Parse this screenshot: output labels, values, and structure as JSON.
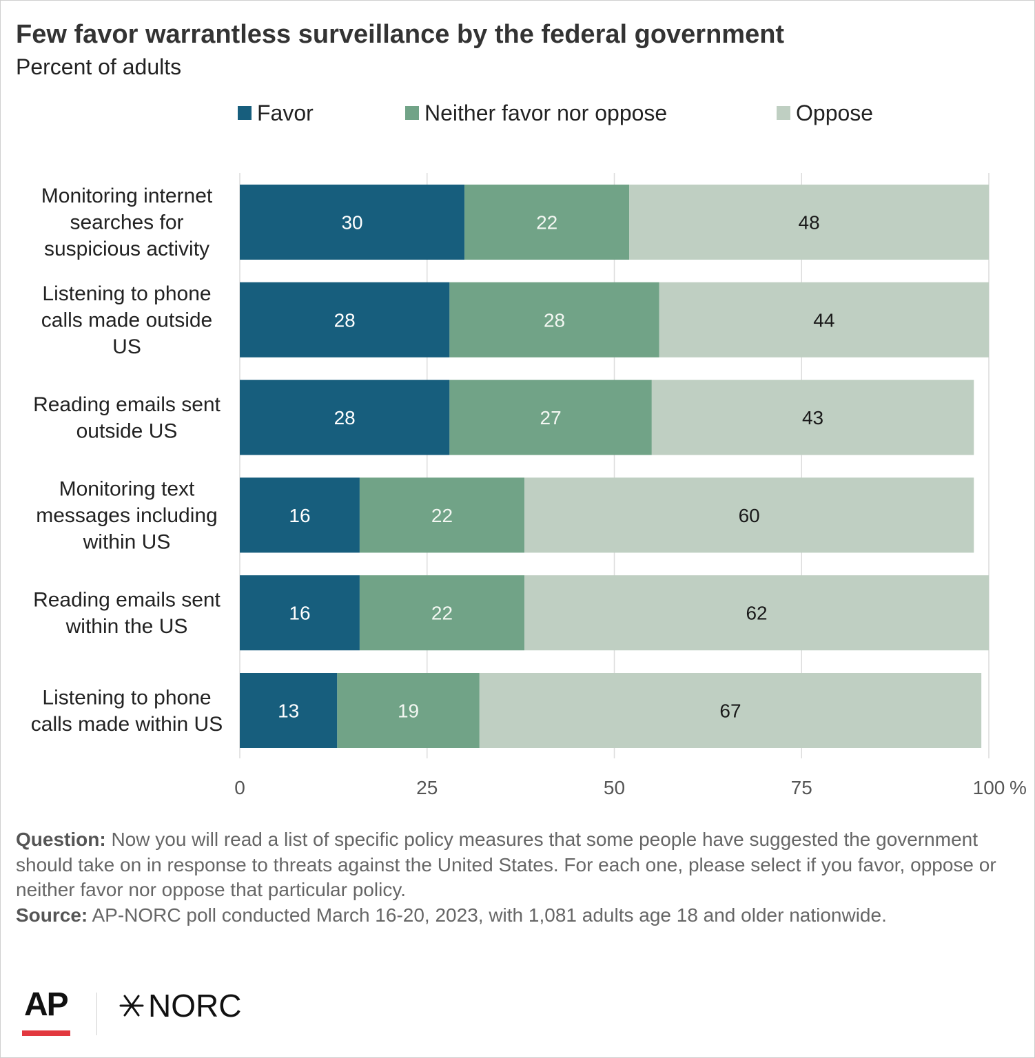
{
  "title": "Few favor warrantless surveillance by the federal government",
  "subtitle": "Percent of adults",
  "legend": [
    {
      "label": "Favor",
      "color": "#175e7d"
    },
    {
      "label": "Neither favor nor oppose",
      "color": "#71a387"
    },
    {
      "label": "Oppose",
      "color": "#bfcfc2"
    }
  ],
  "chart_data": {
    "type": "bar",
    "orientation": "horizontal",
    "stacked": true,
    "categories": [
      [
        "Monitoring internet",
        "searches for",
        "suspicious activity"
      ],
      [
        "Listening to phone",
        "calls made outside",
        "US"
      ],
      [
        "Reading emails sent",
        "outside US"
      ],
      [
        "Monitoring text",
        "messages including",
        "within US"
      ],
      [
        "Reading emails sent",
        "within the US"
      ],
      [
        "Listening to phone",
        "calls made within US"
      ]
    ],
    "series": [
      {
        "name": "Favor",
        "values": [
          30,
          28,
          28,
          16,
          16,
          13
        ],
        "color": "#175e7d",
        "label_color": "#ffffff"
      },
      {
        "name": "Neither favor nor oppose",
        "values": [
          22,
          28,
          27,
          22,
          22,
          19
        ],
        "color": "#71a387",
        "label_color": "#f3f7f2"
      },
      {
        "name": "Oppose",
        "values": [
          48,
          44,
          43,
          60,
          62,
          67
        ],
        "color": "#bfcfc2",
        "label_color": "#1a1a1a"
      }
    ],
    "xlim": [
      0,
      100
    ],
    "xticks": [
      0,
      25,
      50,
      75,
      100
    ],
    "xtick_labels": [
      "0",
      "25",
      "50",
      "75",
      "100"
    ],
    "x_unit": "%",
    "grid": true,
    "legend_position": "top"
  },
  "footnote": {
    "question_label": "Question:",
    "question_text": " Now you will read a list of specific policy measures that some people have suggested the government should take on in response to threats against the United States. For each one, please select if you favor, oppose or neither favor nor oppose that particular policy.",
    "source_label": "Source:",
    "source_text": " AP-NORC poll conducted March 16-20, 2023, with 1,081 adults age 18 and older nationwide."
  },
  "logos": {
    "ap": "AP",
    "norc": "NORC"
  }
}
